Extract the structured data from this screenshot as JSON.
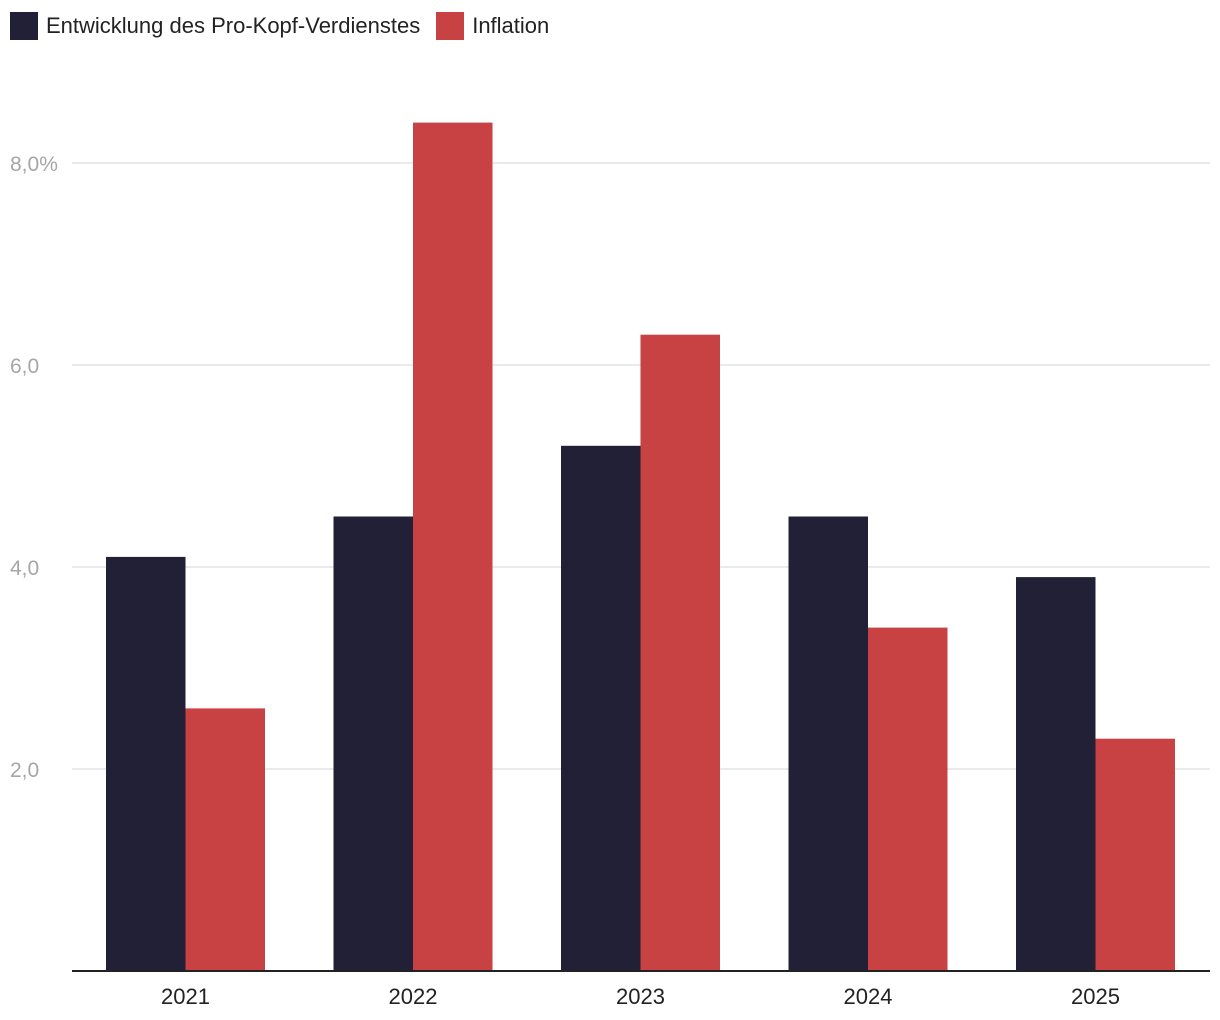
{
  "chart_data": {
    "type": "bar",
    "categories": [
      "2021",
      "2022",
      "2023",
      "2024",
      "2025"
    ],
    "series": [
      {
        "name": "Entwicklung des Pro-Kopf-Verdienstes",
        "values": [
          4.1,
          4.5,
          5.2,
          4.5,
          3.9
        ],
        "color": "#222037"
      },
      {
        "name": "Inflation",
        "values": [
          2.6,
          8.4,
          6.3,
          3.4,
          2.3
        ],
        "color": "#c84143"
      }
    ],
    "yticks": [
      {
        "value": 2,
        "label": "2,0"
      },
      {
        "value": 4,
        "label": "4,0"
      },
      {
        "value": 6,
        "label": "6,0"
      },
      {
        "value": 8,
        "label": "8,0%"
      }
    ],
    "ylim": [
      0,
      8.8
    ],
    "grid": true,
    "legend_position": "top-left",
    "gridline_color": "#e3e3e3",
    "axis_color": "#222222"
  }
}
